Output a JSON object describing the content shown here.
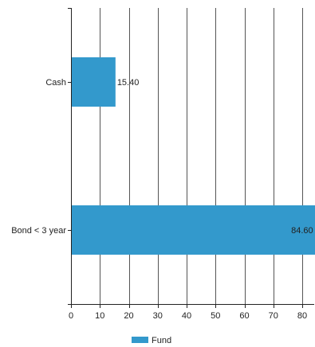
{
  "chart_data": {
    "type": "bar",
    "orientation": "horizontal",
    "categories": [
      "Cash",
      "Bond < 3 year"
    ],
    "series": [
      {
        "name": "Fund",
        "values": [
          15.4,
          84.6
        ],
        "value_labels": [
          "15.40",
          "84.60"
        ],
        "color": "#3399cc"
      }
    ],
    "xlim": [
      0,
      85
    ],
    "x_ticks": [
      0,
      10,
      20,
      30,
      40,
      50,
      60,
      70,
      80
    ],
    "x_tick_labels": [
      "0",
      "10",
      "20",
      "30",
      "40",
      "50",
      "60",
      "70",
      "80"
    ],
    "title": "",
    "xlabel": "",
    "ylabel": "",
    "grid": "vertical",
    "legend_position": "bottom"
  },
  "legend": {
    "label": "Fund",
    "color": "#3399cc"
  },
  "colors": {
    "bar": "#3399cc",
    "grid": "#555555",
    "axis": "#222222",
    "text": "#222222"
  }
}
